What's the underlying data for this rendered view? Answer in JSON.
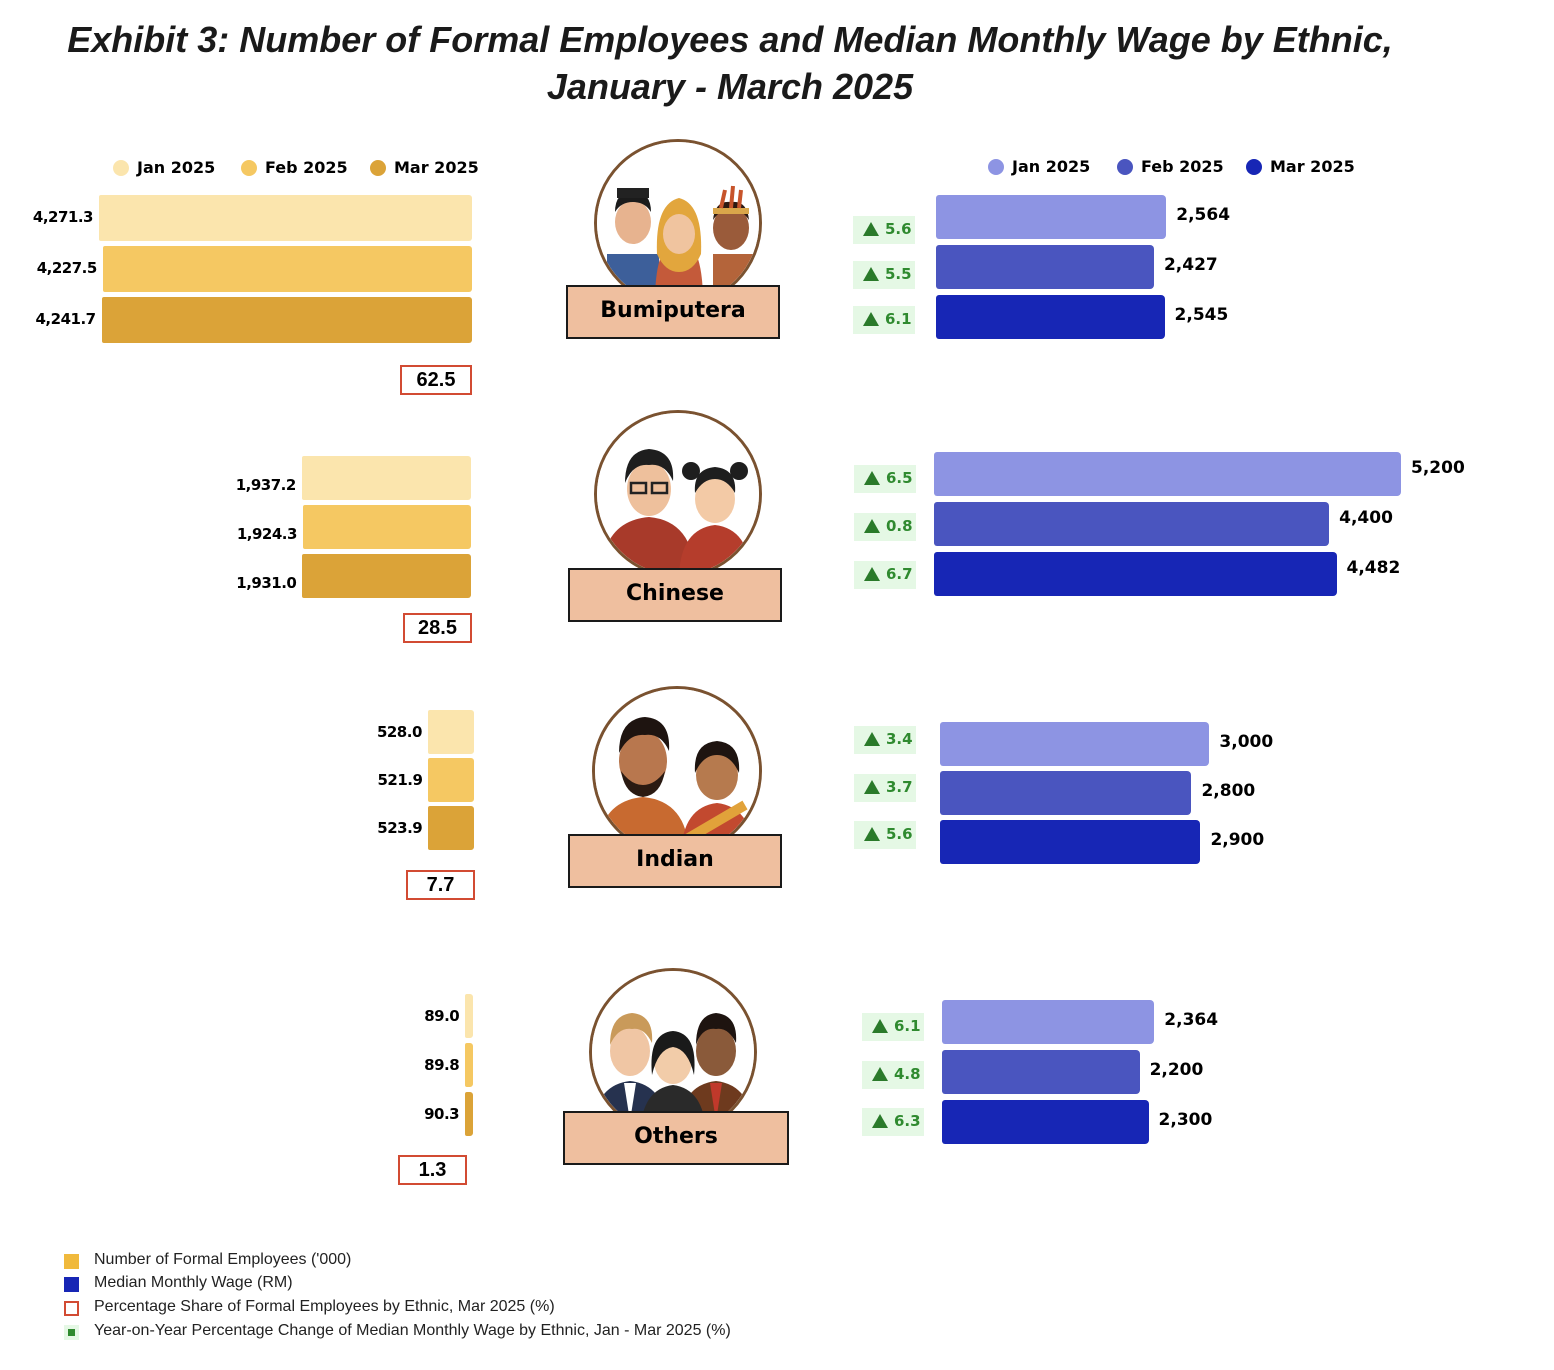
{
  "title_line1": "Exhibit 3: Number of Formal Employees and Median Monthly Wage by Ethnic,",
  "title_line2": "January - March 2025",
  "legend_left": [
    "Jan 2025",
    "Feb 2025",
    "Mar 2025"
  ],
  "legend_right": [
    "Jan 2025",
    "Feb 2025",
    "Mar 2025"
  ],
  "colors": {
    "emp": [
      "#fbe5ad",
      "#f5c862",
      "#dba338"
    ],
    "wage": [
      "#8d94e3",
      "#4a55bf",
      "#1726b5"
    ],
    "share_border": "#d24b33",
    "yoy_bg": "#e5f8e5",
    "yoy_text": "#2f8a2f",
    "label_bg": "#efbf9f"
  },
  "chart_data": {
    "type": "bar",
    "series_labels": [
      "Jan 2025",
      "Feb 2025",
      "Mar 2025"
    ],
    "groups": [
      {
        "name": "Bumiputera",
        "employees": [
          4271.3,
          4227.5,
          4241.7
        ],
        "employees_labels": [
          "4,271.3",
          "4,227.5",
          "4,241.7"
        ],
        "share": "62.5",
        "wage": [
          2564,
          2427,
          2545
        ],
        "wage_labels": [
          "2,564",
          "2,427",
          "2,545"
        ],
        "yoy": [
          "5.6",
          "5.5",
          "6.1"
        ]
      },
      {
        "name": "Chinese",
        "employees": [
          1937.2,
          1924.3,
          1931.0
        ],
        "employees_labels": [
          "1,937.2",
          "1,924.3",
          "1,931.0"
        ],
        "share": "28.5",
        "wage": [
          5200,
          4400,
          4482
        ],
        "wage_labels": [
          "5,200",
          "4,400",
          "4,482"
        ],
        "yoy": [
          "6.5",
          "0.8",
          "6.7"
        ]
      },
      {
        "name": "Indian",
        "employees": [
          528.0,
          521.9,
          523.9
        ],
        "employees_labels": [
          "528.0",
          "521.9",
          "523.9"
        ],
        "share": "7.7",
        "wage": [
          3000,
          2800,
          2900
        ],
        "wage_labels": [
          "3,000",
          "2,800",
          "2,900"
        ],
        "yoy": [
          "3.4",
          "3.7",
          "5.6"
        ]
      },
      {
        "name": "Others",
        "employees": [
          89.0,
          89.8,
          90.3
        ],
        "employees_labels": [
          "89.0",
          "89.8",
          "90.3"
        ],
        "share": "1.3",
        "wage": [
          2364,
          2200,
          2300
        ],
        "wage_labels": [
          "2,364",
          "2,200",
          "2,300"
        ],
        "yoy": [
          "6.1",
          "4.8",
          "6.3"
        ]
      }
    ]
  },
  "footnotes": [
    {
      "label": "Number of Formal Employees ('000)",
      "color": "#f0b93c"
    },
    {
      "label": "Median Monthly Wage (RM)",
      "color": "#1726b5"
    },
    {
      "label": "Percentage Share of Formal Employees by Ethnic, Mar 2025 (%)",
      "color": "#d24b33"
    },
    {
      "label": "Year-on-Year Percentage Change of Median Monthly Wage by Ethnic, Jan - Mar 2025 (%)",
      "color": "#2f8a2f"
    }
  ]
}
